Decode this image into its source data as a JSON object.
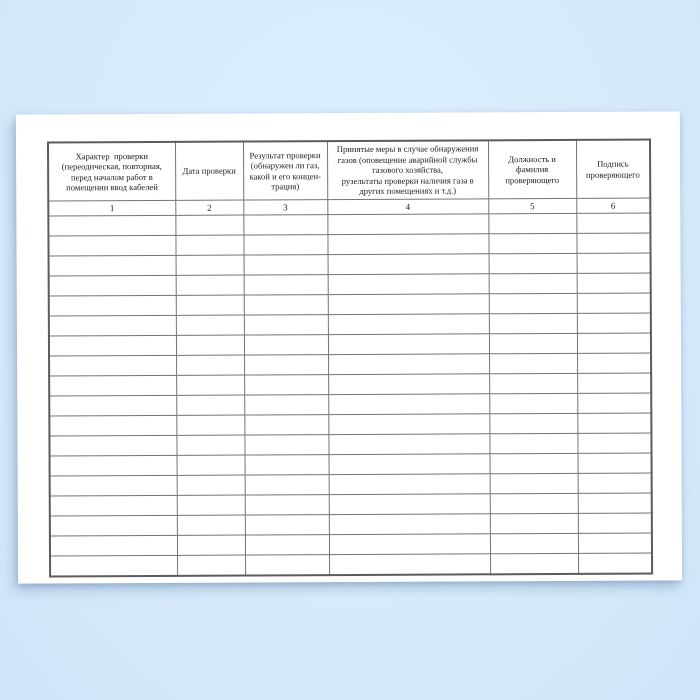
{
  "document": {
    "kind": "inspection-log-table-sheet",
    "colors": {
      "background_blue": "#d7ebfc",
      "paper": "#ffffff",
      "grid_line": "#747474",
      "outer_border": "#5c5c5c",
      "text": "#1c1c1c"
    }
  },
  "table": {
    "columns": [
      {
        "number": "1",
        "header": "Характер  проверки\n(переодическая, повторная,\nперед началом работ в\nпомещении ввод кабелей"
      },
      {
        "number": "2",
        "header": "Дата проверки"
      },
      {
        "number": "3",
        "header": "Результат проверки\n(обнаружен ли газ,\nкакой и его концен-\nтрация)"
      },
      {
        "number": "4",
        "header": "Принятые меры в случае обнаружения\nгазов (оповещение аварийной службы\nгазового хозяйства,\nрузельтаты проверки наличия газа в\nдругих помещениях и т.д.)"
      },
      {
        "number": "5",
        "header": "Должность и\nфамилия\nпроверяющего"
      },
      {
        "number": "6",
        "header": "Подпись\nпроверяющего"
      }
    ],
    "empty_row_count": 18
  }
}
